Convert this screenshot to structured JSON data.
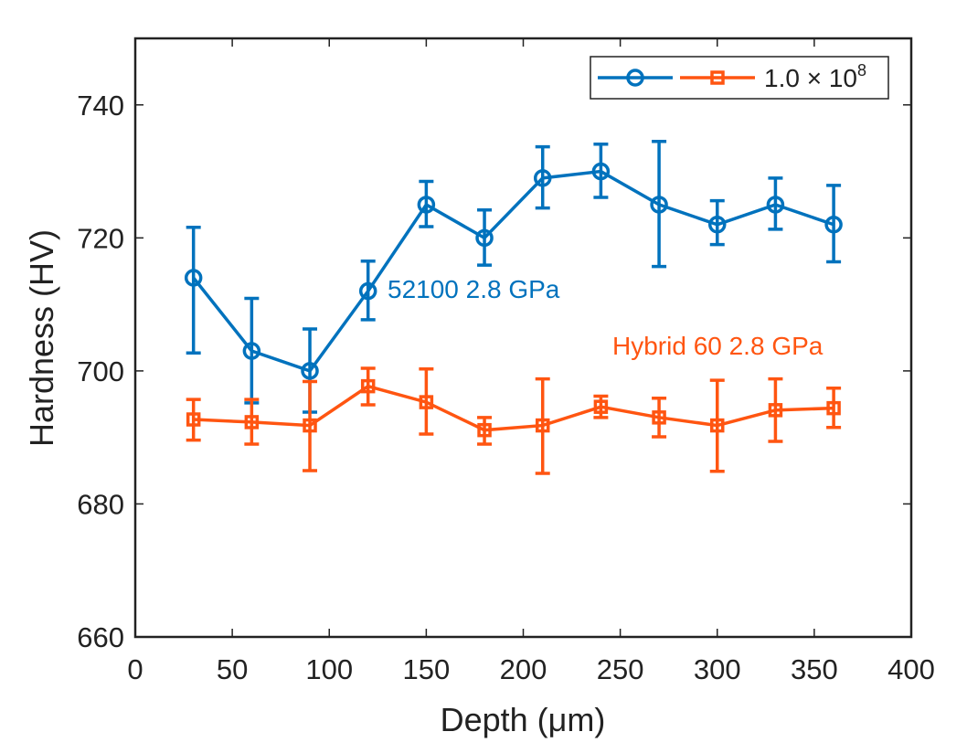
{
  "chart_data": {
    "type": "line",
    "xlabel": "Depth (μm)",
    "ylabel": "Hardness (HV)",
    "xlim": [
      0,
      400
    ],
    "ylim": [
      660,
      750
    ],
    "xticks": [
      0,
      50,
      100,
      150,
      200,
      250,
      300,
      350,
      400
    ],
    "yticks": [
      660,
      680,
      700,
      720,
      740
    ],
    "grid": false,
    "legend": {
      "placement": "top-right",
      "text": "1.0 × 10",
      "superscript": "8"
    },
    "x": [
      30,
      60,
      90,
      120,
      150,
      180,
      210,
      240,
      270,
      300,
      330,
      360
    ],
    "series": [
      {
        "label": "52100 2.8 GPa",
        "color": "#0072BD",
        "marker": "circle",
        "values": [
          714,
          703,
          700,
          712,
          725,
          720,
          729,
          730,
          725,
          722,
          725,
          722
        ],
        "upper": [
          721.6,
          710.9,
          706.3,
          716.5,
          728.5,
          724.2,
          733.7,
          734.1,
          734.5,
          725.6,
          729.0,
          727.9
        ],
        "lower": [
          702.7,
          695.2,
          693.8,
          707.7,
          721.7,
          715.9,
          724.5,
          726.1,
          715.7,
          719.0,
          721.3,
          716.4
        ]
      },
      {
        "label": "Hybrid 60 2.8 GPa",
        "color": "#FF5511",
        "marker": "square",
        "values": [
          692.7,
          692.3,
          691.8,
          697.7,
          695.3,
          691.1,
          691.8,
          694.6,
          693.0,
          691.8,
          694.1,
          694.4
        ],
        "upper": [
          695.7,
          695.7,
          698.4,
          700.4,
          700.3,
          693.0,
          698.8,
          696.2,
          695.9,
          698.6,
          698.8,
          697.4
        ],
        "lower": [
          689.6,
          689.0,
          685.0,
          694.9,
          690.5,
          689.0,
          684.6,
          693.0,
          690.1,
          684.9,
          689.4,
          691.5
        ]
      }
    ]
  }
}
